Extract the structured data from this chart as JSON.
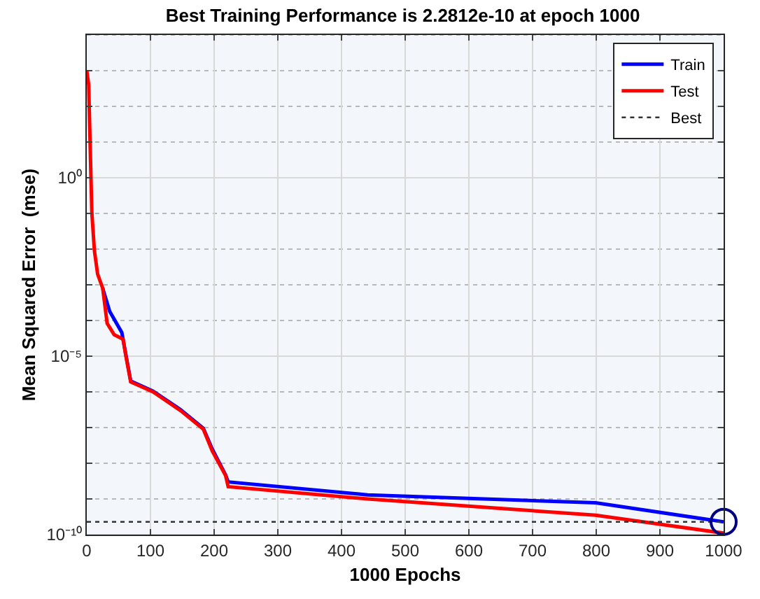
{
  "chart_data": {
    "type": "line",
    "title": "Best Training Performance is 2.2812e-10 at epoch 1000",
    "xlabel": "1000 Epochs",
    "ylabel": "Mean Squared Error  (mse)",
    "log": "y",
    "grid": true,
    "legend": "top right",
    "marker": "none",
    "xlim": [
      0,
      1000
    ],
    "xticks": [
      0,
      100,
      200,
      300,
      400,
      500,
      600,
      700,
      800,
      900,
      1000
    ],
    "ylim": [
      1e-10,
      10000
    ],
    "yticks": [
      {
        "value": 1e-10,
        "label": "10⁻¹⁰"
      },
      {
        "value": 1e-09,
        "label": null
      },
      {
        "value": 1e-08,
        "label": null
      },
      {
        "value": 1e-07,
        "label": null
      },
      {
        "value": 1e-06,
        "label": null
      },
      {
        "value": 1e-05,
        "label": "10⁻⁵"
      },
      {
        "value": 0.0001,
        "label": null
      },
      {
        "value": 0.001,
        "label": null
      },
      {
        "value": 0.01,
        "label": null
      },
      {
        "value": 0.1,
        "label": null
      },
      {
        "value": 1,
        "label": "10⁰"
      },
      {
        "value": 10,
        "label": null
      },
      {
        "value": 100,
        "label": null
      },
      {
        "value": 1000,
        "label": null
      },
      {
        "value": 10000,
        "label": null
      }
    ],
    "series": [
      {
        "name": "Train",
        "color": "#0000ff",
        "line_style": "solid",
        "x": [
          25,
          36,
          55,
          69,
          104,
          147,
          183,
          197,
          218,
          222,
          441,
          799,
          1000
        ],
        "values": [
          0.0008,
          0.00018,
          4.6e-05,
          2e-06,
          1.05e-06,
          3.2e-07,
          9.5e-08,
          2.5e-08,
          4.7e-09,
          3e-09,
          1.3e-09,
          7.8e-10,
          2.2812e-10
        ]
      },
      {
        "name": "Test",
        "color": "#ff0000",
        "line_style": "solid",
        "x": [
          0,
          3,
          5,
          8,
          12,
          17,
          25,
          32,
          43,
          57,
          61,
          69,
          104,
          147,
          183,
          197,
          218,
          222,
          441,
          799,
          1000
        ],
        "values": [
          1000,
          400,
          13,
          0.1,
          0.009,
          0.002,
          0.0008,
          8.3e-05,
          4e-05,
          3e-05,
          1.1e-05,
          1.9e-06,
          1e-06,
          3e-07,
          9e-08,
          2.2e-08,
          4.5e-09,
          2.2e-09,
          1e-09,
          3.5e-10,
          1.1e-10
        ]
      },
      {
        "name": "Best",
        "color": "#333333",
        "line_style": "dotted",
        "x": [
          0,
          1000
        ],
        "values": [
          2.2812e-10,
          2.2812e-10
        ]
      },
      {
        "type": "scatter",
        "color": "#000080",
        "marker": "circle",
        "x": [
          1000
        ],
        "values": [
          2.2812e-10
        ]
      }
    ]
  }
}
